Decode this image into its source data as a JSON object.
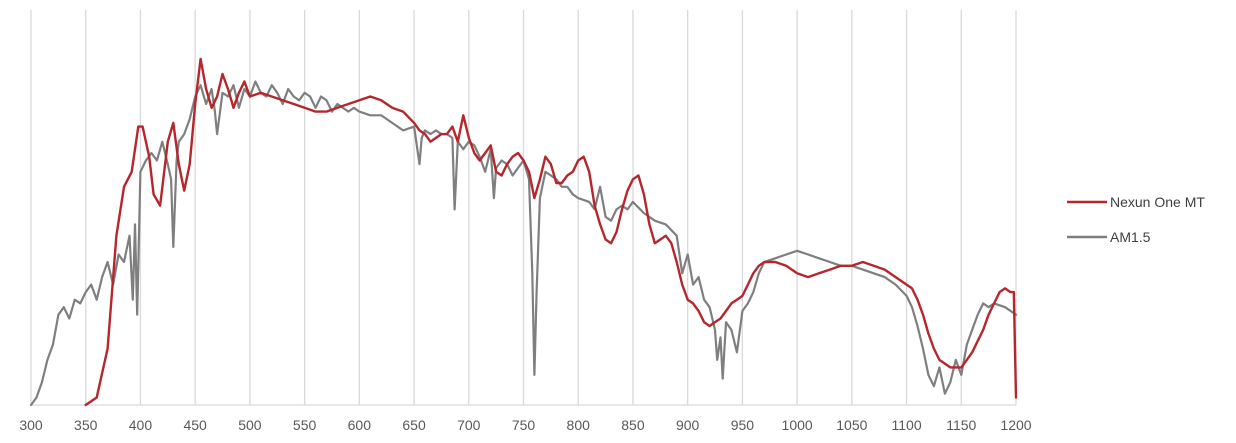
{
  "chart_data": {
    "type": "line",
    "title": "",
    "xlabel": "",
    "ylabel": "",
    "xlim": [
      300,
      1200
    ],
    "ylim": [
      0,
      1.05
    ],
    "x_ticks": [
      "300",
      "350",
      "400",
      "450",
      "500",
      "550",
      "600",
      "650",
      "700",
      "750",
      "800",
      "850",
      "900",
      "950",
      "1000",
      "1050",
      "1100",
      "1150",
      "1200"
    ],
    "grid": "vertical",
    "legend_position": "right",
    "series": [
      {
        "name": "Nexun One MT",
        "color": "#b5262d",
        "x": [
          350,
          360,
          370,
          378,
          385,
          392,
          398,
          402,
          408,
          412,
          418,
          425,
          430,
          435,
          440,
          445,
          450,
          455,
          460,
          465,
          470,
          475,
          480,
          485,
          490,
          495,
          500,
          510,
          520,
          530,
          540,
          550,
          560,
          570,
          580,
          590,
          600,
          610,
          620,
          630,
          640,
          650,
          655,
          660,
          665,
          670,
          675,
          680,
          685,
          690,
          695,
          700,
          705,
          710,
          715,
          720,
          725,
          730,
          735,
          740,
          745,
          750,
          755,
          760,
          765,
          770,
          775,
          780,
          785,
          790,
          795,
          800,
          805,
          810,
          815,
          820,
          825,
          830,
          835,
          840,
          845,
          850,
          855,
          860,
          865,
          870,
          875,
          880,
          885,
          890,
          895,
          900,
          905,
          910,
          915,
          920,
          925,
          930,
          935,
          940,
          945,
          950,
          955,
          960,
          965,
          970,
          980,
          990,
          1000,
          1010,
          1020,
          1030,
          1040,
          1050,
          1060,
          1070,
          1080,
          1090,
          1100,
          1105,
          1110,
          1115,
          1120,
          1125,
          1130,
          1135,
          1140,
          1145,
          1150,
          1155,
          1160,
          1165,
          1170,
          1175,
          1180,
          1185,
          1190,
          1195,
          1198,
          1200
        ],
        "y": [
          0,
          0.02,
          0.15,
          0.45,
          0.58,
          0.62,
          0.74,
          0.74,
          0.66,
          0.56,
          0.53,
          0.7,
          0.75,
          0.64,
          0.57,
          0.64,
          0.8,
          0.92,
          0.84,
          0.79,
          0.82,
          0.88,
          0.84,
          0.79,
          0.83,
          0.86,
          0.82,
          0.83,
          0.82,
          0.81,
          0.8,
          0.79,
          0.78,
          0.78,
          0.79,
          0.8,
          0.81,
          0.82,
          0.81,
          0.79,
          0.78,
          0.75,
          0.73,
          0.72,
          0.7,
          0.71,
          0.72,
          0.72,
          0.74,
          0.7,
          0.77,
          0.71,
          0.67,
          0.65,
          0.67,
          0.69,
          0.62,
          0.61,
          0.64,
          0.66,
          0.67,
          0.65,
          0.62,
          0.55,
          0.6,
          0.66,
          0.64,
          0.59,
          0.59,
          0.61,
          0.62,
          0.65,
          0.66,
          0.62,
          0.53,
          0.48,
          0.44,
          0.43,
          0.46,
          0.52,
          0.57,
          0.6,
          0.61,
          0.56,
          0.48,
          0.43,
          0.44,
          0.45,
          0.43,
          0.38,
          0.32,
          0.28,
          0.27,
          0.25,
          0.22,
          0.21,
          0.22,
          0.23,
          0.25,
          0.27,
          0.28,
          0.29,
          0.32,
          0.35,
          0.37,
          0.38,
          0.38,
          0.37,
          0.35,
          0.34,
          0.35,
          0.36,
          0.37,
          0.37,
          0.38,
          0.37,
          0.36,
          0.34,
          0.32,
          0.31,
          0.28,
          0.24,
          0.19,
          0.15,
          0.12,
          0.11,
          0.1,
          0.1,
          0.1,
          0.12,
          0.14,
          0.17,
          0.2,
          0.24,
          0.27,
          0.3,
          0.31,
          0.3,
          0.3,
          0.02
        ]
      },
      {
        "name": "AM1.5",
        "color": "#7f7f7f",
        "x": [
          300,
          305,
          310,
          315,
          320,
          325,
          330,
          335,
          340,
          345,
          350,
          355,
          360,
          365,
          370,
          375,
          380,
          385,
          390,
          393,
          395,
          397,
          400,
          405,
          410,
          415,
          420,
          425,
          428,
          430,
          433,
          435,
          440,
          445,
          450,
          455,
          460,
          465,
          468,
          470,
          475,
          480,
          485,
          490,
          495,
          500,
          505,
          510,
          515,
          520,
          525,
          530,
          535,
          540,
          545,
          550,
          555,
          560,
          565,
          570,
          575,
          580,
          585,
          590,
          595,
          600,
          610,
          620,
          630,
          640,
          650,
          655,
          657,
          660,
          665,
          670,
          675,
          680,
          685,
          687,
          690,
          695,
          700,
          705,
          710,
          715,
          720,
          723,
          725,
          730,
          735,
          740,
          745,
          750,
          755,
          758,
          760,
          762,
          765,
          770,
          775,
          780,
          785,
          790,
          795,
          800,
          810,
          815,
          820,
          825,
          830,
          835,
          840,
          845,
          850,
          860,
          870,
          880,
          890,
          895,
          900,
          905,
          910,
          915,
          920,
          925,
          927,
          930,
          932,
          935,
          940,
          945,
          950,
          955,
          960,
          965,
          970,
          980,
          990,
          1000,
          1010,
          1020,
          1030,
          1040,
          1050,
          1060,
          1070,
          1080,
          1090,
          1100,
          1105,
          1110,
          1115,
          1120,
          1125,
          1130,
          1135,
          1140,
          1145,
          1150,
          1155,
          1160,
          1165,
          1170,
          1175,
          1180,
          1190,
          1200
        ],
        "y": [
          0,
          0.02,
          0.06,
          0.12,
          0.16,
          0.24,
          0.26,
          0.23,
          0.28,
          0.27,
          0.3,
          0.32,
          0.28,
          0.34,
          0.38,
          0.32,
          0.4,
          0.38,
          0.45,
          0.28,
          0.48,
          0.24,
          0.62,
          0.65,
          0.67,
          0.65,
          0.7,
          0.64,
          0.6,
          0.42,
          0.65,
          0.7,
          0.72,
          0.76,
          0.82,
          0.85,
          0.8,
          0.84,
          0.78,
          0.72,
          0.83,
          0.82,
          0.85,
          0.79,
          0.84,
          0.82,
          0.86,
          0.83,
          0.82,
          0.85,
          0.83,
          0.8,
          0.84,
          0.82,
          0.81,
          0.83,
          0.82,
          0.79,
          0.82,
          0.81,
          0.78,
          0.8,
          0.79,
          0.78,
          0.79,
          0.78,
          0.77,
          0.77,
          0.75,
          0.73,
          0.74,
          0.64,
          0.71,
          0.73,
          0.72,
          0.73,
          0.72,
          0.72,
          0.71,
          0.52,
          0.7,
          0.68,
          0.7,
          0.69,
          0.66,
          0.62,
          0.68,
          0.55,
          0.63,
          0.65,
          0.64,
          0.61,
          0.63,
          0.65,
          0.6,
          0.35,
          0.08,
          0.3,
          0.55,
          0.62,
          0.61,
          0.6,
          0.58,
          0.58,
          0.56,
          0.55,
          0.54,
          0.52,
          0.58,
          0.5,
          0.49,
          0.52,
          0.53,
          0.52,
          0.54,
          0.51,
          0.49,
          0.48,
          0.45,
          0.35,
          0.4,
          0.32,
          0.34,
          0.28,
          0.26,
          0.2,
          0.12,
          0.18,
          0.07,
          0.22,
          0.2,
          0.14,
          0.25,
          0.27,
          0.3,
          0.35,
          0.38,
          0.39,
          0.4,
          0.41,
          0.4,
          0.39,
          0.38,
          0.37,
          0.37,
          0.36,
          0.35,
          0.34,
          0.32,
          0.29,
          0.26,
          0.21,
          0.15,
          0.08,
          0.05,
          0.1,
          0.03,
          0.06,
          0.12,
          0.08,
          0.16,
          0.2,
          0.24,
          0.27,
          0.26,
          0.27,
          0.26,
          0.24
        ]
      }
    ]
  }
}
